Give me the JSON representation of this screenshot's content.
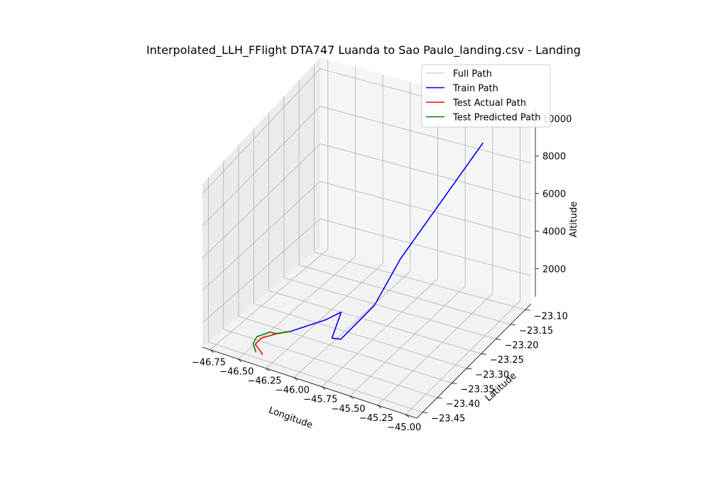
{
  "chart_data": {
    "type": "line",
    "projection": "3d",
    "title": "Interpolated_LLH_FFlight DTA747 Luanda to Sao Paulo_landing.csv - Landing",
    "xlabel": "Longitude",
    "ylabel": "Latitude",
    "zlabel": "Altitude",
    "x_ticks": [
      "−46.75",
      "−46.50",
      "−46.25",
      "−46.00",
      "−45.75",
      "−45.50",
      "−45.25",
      "−45.00"
    ],
    "y_ticks": [
      "−23.45",
      "−23.40",
      "−23.35",
      "−23.30",
      "−23.25",
      "−23.20",
      "−23.15",
      "−23.10"
    ],
    "z_ticks": [
      "2000",
      "4000",
      "6000",
      "8000",
      "10000"
    ],
    "xlim": [
      -46.82,
      -44.9
    ],
    "ylim": [
      -23.47,
      -23.08
    ],
    "zlim": [
      500,
      10600
    ],
    "grid": true,
    "legend_position": "top-right",
    "series": [
      {
        "name": "Full Path",
        "color": "#d3d3d3",
        "points": []
      },
      {
        "name": "Train Path",
        "color": "#0000ff",
        "points": [
          [
            -45.15,
            -23.15,
            10000
          ],
          [
            -45.55,
            -23.28,
            5200
          ],
          [
            -45.65,
            -23.33,
            3200
          ],
          [
            -45.82,
            -23.38,
            1700
          ],
          [
            -45.9,
            -23.38,
            1600
          ],
          [
            -45.95,
            -23.33,
            2200
          ],
          [
            -46.06,
            -23.34,
            1700
          ],
          [
            -46.3,
            -23.37,
            1000
          ]
        ]
      },
      {
        "name": "Test Actual Path",
        "color": "#ff0000",
        "points": [
          [
            -46.3,
            -23.37,
            1000
          ],
          [
            -46.4,
            -23.38,
            800
          ],
          [
            -46.48,
            -23.4,
            700
          ],
          [
            -46.48,
            -23.42,
            650
          ],
          [
            -46.36,
            -23.44,
            600
          ]
        ]
      },
      {
        "name": "Test Predicted Path",
        "color": "#008000",
        "points": [
          [
            -46.3,
            -23.37,
            1000
          ],
          [
            -46.4,
            -23.38,
            820
          ],
          [
            -46.46,
            -23.38,
            780
          ],
          [
            -46.52,
            -23.4,
            700
          ],
          [
            -46.5,
            -23.42,
            650
          ],
          [
            -46.42,
            -23.44,
            600
          ]
        ]
      }
    ]
  }
}
